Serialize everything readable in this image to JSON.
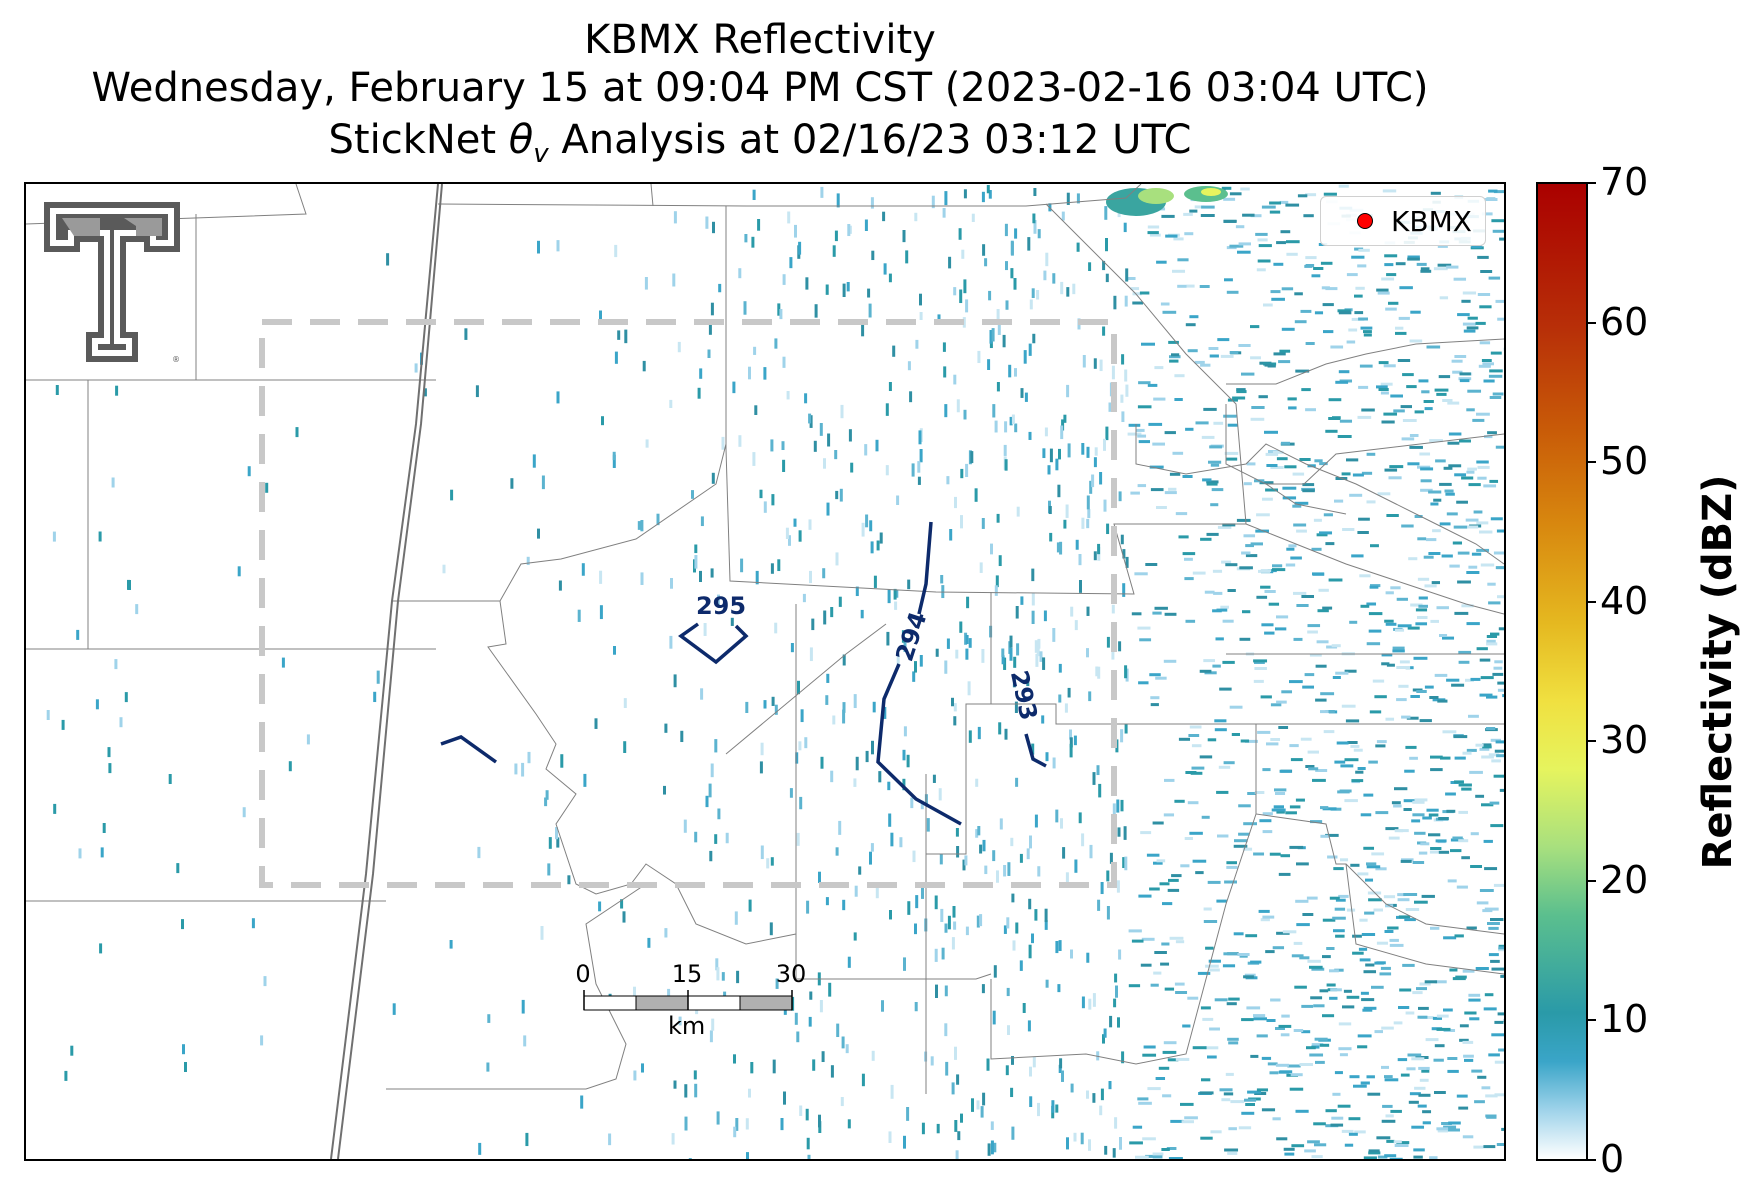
{
  "title": {
    "line1": "KBMX Reflectivity",
    "line2": "Wednesday, February 15 at 09:04 PM CST (2023-02-16 03:04 UTC)",
    "line3_prefix": "StickNet ",
    "line3_symbol": "θ",
    "line3_subscript": "v",
    "line3_suffix": " Analysis at 02/16/23 03:12 UTC"
  },
  "legend": {
    "label": "KBMX",
    "marker_color": "#ff0000"
  },
  "scalebar": {
    "ticks": [
      "0",
      "15",
      "30"
    ],
    "unit": "km"
  },
  "contours": [
    {
      "label": "295",
      "color": "#0d2a6b"
    },
    {
      "label": "294",
      "color": "#0d2a6b"
    },
    {
      "label": "293",
      "color": "#0d2a6b"
    }
  ],
  "colorbar": {
    "title": "Reflectivity (dBZ)",
    "ticks": [
      "0",
      "10",
      "20",
      "30",
      "40",
      "50",
      "60",
      "70"
    ],
    "min": 0,
    "max": 70
  },
  "logo": {
    "name": "texas-tech-double-t-logo",
    "color": "#5a5a5a"
  },
  "analysis_box": {
    "style": "dashed",
    "color": "#c8c8c8"
  }
}
